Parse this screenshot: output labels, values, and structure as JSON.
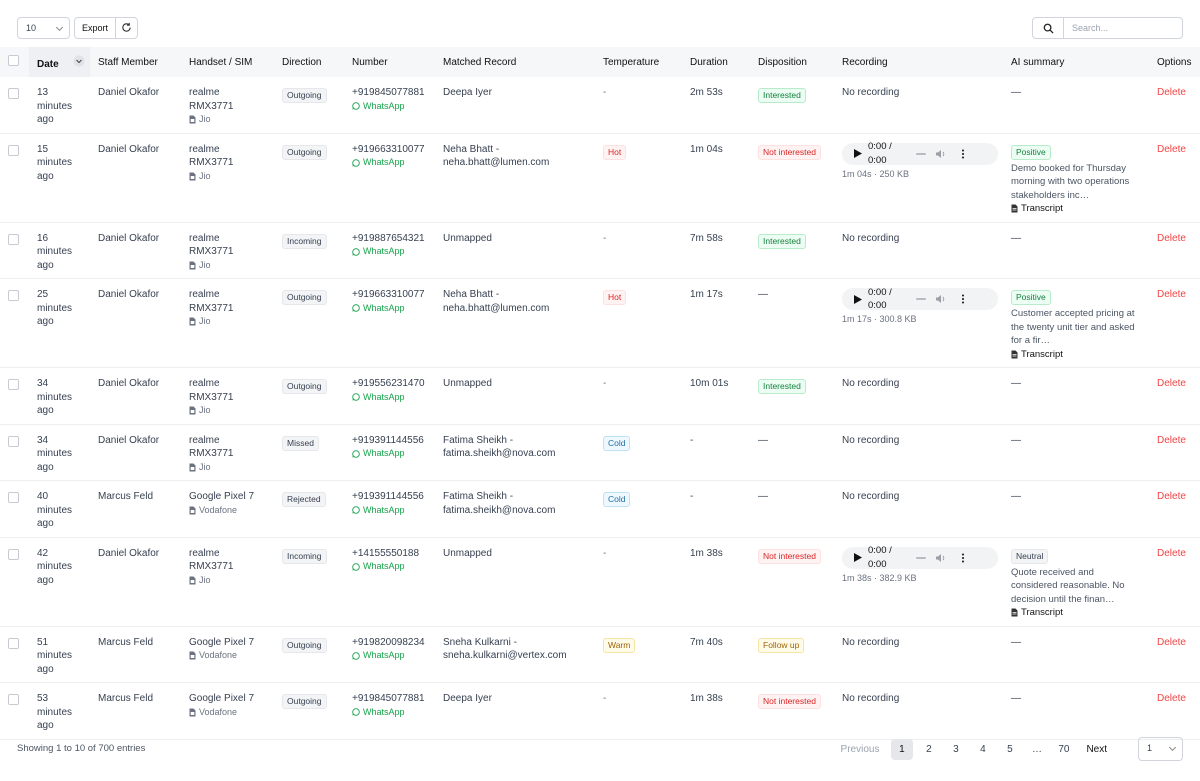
{
  "toolbar": {
    "page_size": "10",
    "export": "Export",
    "search_placeholder": "Search..."
  },
  "table": {
    "columns": [
      "Date",
      "Staff Member",
      "Handset / SIM",
      "Direction",
      "Number",
      "Matched Record",
      "Temperature",
      "Duration",
      "Disposition",
      "Recording",
      "AI summary",
      "Options"
    ],
    "rows": [
      {
        "date": "13 minutes ago",
        "staff": "Daniel Okafor",
        "handset": "realme RMX3771",
        "sim": "Jio",
        "direction": "Outgoing",
        "number": "+919845077881",
        "channel": "WhatsApp",
        "matched": "Deepa Iyer",
        "temperature": {
          "text": "-"
        },
        "duration": "2m 53s",
        "disposition": {
          "text": "Interested",
          "tone": "green"
        },
        "recording": {
          "text": "No recording"
        },
        "summary": {
          "text": "—"
        },
        "option": "Delete"
      },
      {
        "date": "15 minutes ago",
        "staff": "Daniel Okafor",
        "handset": "realme RMX3771",
        "sim": "Jio",
        "direction": "Outgoing",
        "number": "+919663310077",
        "channel": "WhatsApp",
        "matched": "Neha Bhatt - neha.bhatt@lumen.com",
        "temperature": {
          "text": "Hot",
          "tone": "red"
        },
        "duration": "1m 04s",
        "disposition": {
          "text": "Not interested",
          "tone": "red"
        },
        "recording": {
          "time": "0:00 / 0:00",
          "meta": "1m 04s · 250 KB"
        },
        "summary": {
          "sentiment": "Positive",
          "tone": "green",
          "text": "Demo booked for Thursday morning with two operations stakeholders inc…",
          "transcript": "Transcript"
        },
        "option": "Delete"
      },
      {
        "date": "16 minutes ago",
        "staff": "Daniel Okafor",
        "handset": "realme RMX3771",
        "sim": "Jio",
        "direction": "Incoming",
        "number": "+919887654321",
        "channel": "WhatsApp",
        "matched": "Unmapped",
        "temperature": {
          "text": "-"
        },
        "duration": "7m 58s",
        "disposition": {
          "text": "Interested",
          "tone": "green"
        },
        "recording": {
          "text": "No recording"
        },
        "summary": {
          "text": "—"
        },
        "option": "Delete"
      },
      {
        "date": "25 minutes ago",
        "staff": "Daniel Okafor",
        "handset": "realme RMX3771",
        "sim": "Jio",
        "direction": "Outgoing",
        "number": "+919663310077",
        "channel": "WhatsApp",
        "matched": "Neha Bhatt - neha.bhatt@lumen.com",
        "temperature": {
          "text": "Hot",
          "tone": "red"
        },
        "duration": "1m 17s",
        "disposition": {
          "text": "—"
        },
        "recording": {
          "time": "0:00 / 0:00",
          "meta": "1m 17s · 300.8 KB"
        },
        "summary": {
          "sentiment": "Positive",
          "tone": "green",
          "text": "Customer accepted pricing at the twenty unit tier and asked for a fir…",
          "transcript": "Transcript"
        },
        "option": "Delete"
      },
      {
        "date": "34 minutes ago",
        "staff": "Daniel Okafor",
        "handset": "realme RMX3771",
        "sim": "Jio",
        "direction": "Outgoing",
        "number": "+919556231470",
        "channel": "WhatsApp",
        "matched": "Unmapped",
        "temperature": {
          "text": "-"
        },
        "duration": "10m 01s",
        "disposition": {
          "text": "Interested",
          "tone": "green"
        },
        "recording": {
          "text": "No recording"
        },
        "summary": {
          "text": "—"
        },
        "option": "Delete"
      },
      {
        "date": "34 minutes ago",
        "staff": "Daniel Okafor",
        "handset": "realme RMX3771",
        "sim": "Jio",
        "direction": "Missed",
        "number": "+919391144556",
        "channel": "WhatsApp",
        "matched": "Fatima Sheikh - fatima.sheikh@nova.com",
        "temperature": {
          "text": "Cold",
          "tone": "blue"
        },
        "duration": "-",
        "disposition": {
          "text": "—"
        },
        "recording": {
          "text": "No recording"
        },
        "summary": {
          "text": "—"
        },
        "option": "Delete"
      },
      {
        "date": "40 minutes ago",
        "staff": "Marcus Feld",
        "handset": "Google Pixel 7",
        "sim": "Vodafone",
        "direction": "Rejected",
        "number": "+919391144556",
        "channel": "WhatsApp",
        "matched": "Fatima Sheikh - fatima.sheikh@nova.com",
        "temperature": {
          "text": "Cold",
          "tone": "blue"
        },
        "duration": "-",
        "disposition": {
          "text": "—"
        },
        "recording": {
          "text": "No recording"
        },
        "summary": {
          "text": "—"
        },
        "option": "Delete"
      },
      {
        "date": "42 minutes ago",
        "staff": "Daniel Okafor",
        "handset": "realme RMX3771",
        "sim": "Jio",
        "direction": "Incoming",
        "number": "+14155550188",
        "channel": "WhatsApp",
        "matched": "Unmapped",
        "temperature": {
          "text": "-"
        },
        "duration": "1m 38s",
        "disposition": {
          "text": "Not interested",
          "tone": "red"
        },
        "recording": {
          "time": "0:00 / 0:00",
          "meta": "1m 38s · 382.9 KB"
        },
        "summary": {
          "sentiment": "Neutral",
          "tone": "gray",
          "text": "Quote received and considered reasonable. No decision until the finan…",
          "transcript": "Transcript"
        },
        "option": "Delete"
      },
      {
        "date": "51 minutes ago",
        "staff": "Marcus Feld",
        "handset": "Google Pixel 7",
        "sim": "Vodafone",
        "direction": "Outgoing",
        "number": "+919820098234",
        "channel": "WhatsApp",
        "matched": "Sneha Kulkarni - sneha.kulkarni@vertex.com",
        "temperature": {
          "text": "Warm",
          "tone": "yellow"
        },
        "duration": "7m 40s",
        "disposition": {
          "text": "Follow up",
          "tone": "yellow"
        },
        "recording": {
          "text": "No recording"
        },
        "summary": {
          "text": "—"
        },
        "option": "Delete"
      },
      {
        "date": "53 minutes ago",
        "staff": "Marcus Feld",
        "handset": "Google Pixel 7",
        "sim": "Vodafone",
        "direction": "Outgoing",
        "number": "+919845077881",
        "channel": "WhatsApp",
        "matched": "Deepa Iyer",
        "temperature": {
          "text": "-"
        },
        "duration": "1m 38s",
        "disposition": {
          "text": "Not interested",
          "tone": "red"
        },
        "recording": {
          "text": "No recording"
        },
        "summary": {
          "text": "—"
        },
        "option": "Delete"
      }
    ]
  },
  "footer": {
    "info": "Showing 1 to 10 of 700 entries",
    "previous": "Previous",
    "pages": [
      "1",
      "2",
      "3",
      "4",
      "5",
      "…",
      "70"
    ],
    "next": "Next",
    "page_select": "1"
  }
}
